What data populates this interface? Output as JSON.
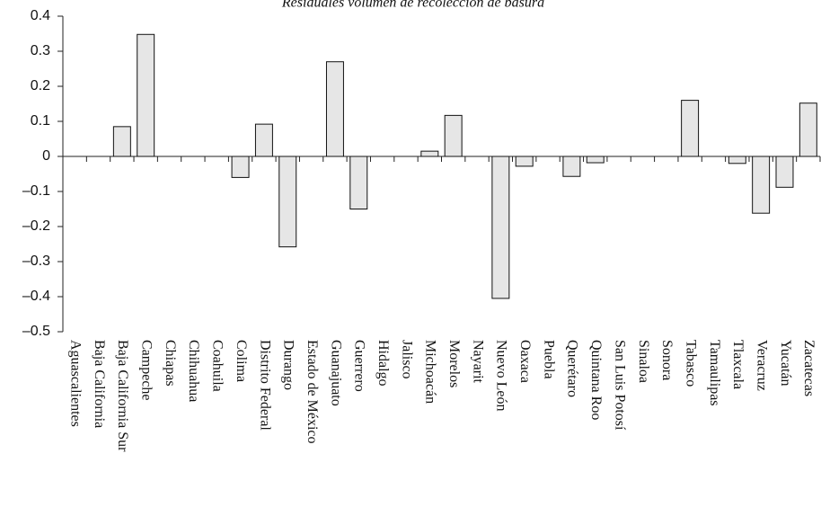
{
  "chart_data": {
    "type": "bar",
    "title": "Residuales volumen de recolección de basura",
    "categories": [
      "Aguascalientes",
      "Baja California",
      "Baja California Sur",
      "Campeche",
      "Chiapas",
      "Chihuahua",
      "Coahuila",
      "Colima",
      "Distrito Federal",
      "Durango",
      "Estado de México",
      "Guanajuato",
      "Guerrero",
      "Hidalgo",
      "Jalisco",
      "Michoacán",
      "Morelos",
      "Nayarit",
      "Nuevo León",
      "Oaxaca",
      "Puebla",
      "Querétaro",
      "Quintana Roo",
      "San Luis Potosí",
      "Sinaloa",
      "Sonora",
      "Tabasco",
      "Tamaulipas",
      "Tlaxcala",
      "Veracruz",
      "Yucatán",
      "Zacatecas"
    ],
    "values": [
      0,
      0,
      0.085,
      0.348,
      0,
      0,
      0,
      -0.06,
      0.092,
      -0.258,
      0,
      0.27,
      -0.15,
      0,
      0,
      0.015,
      0.117,
      0,
      -0.405,
      -0.028,
      0,
      -0.057,
      -0.018,
      0,
      0,
      0,
      0.16,
      0,
      -0.02,
      -0.162,
      -0.088,
      0.152
    ],
    "color": "#e6e6e6",
    "ylim": [
      -0.5,
      0.4
    ],
    "yticks": [
      0.4,
      0.3,
      0.2,
      0.1,
      0,
      {
        "value": -0.1,
        "label": "–0.1"
      },
      {
        "value": -0.2,
        "label": "–0.2"
      },
      {
        "value": -0.3,
        "label": "–0.3"
      },
      {
        "value": -0.4,
        "label": "–0.4"
      },
      {
        "value": -0.5,
        "label": "–0.5"
      }
    ],
    "grid": false
  }
}
